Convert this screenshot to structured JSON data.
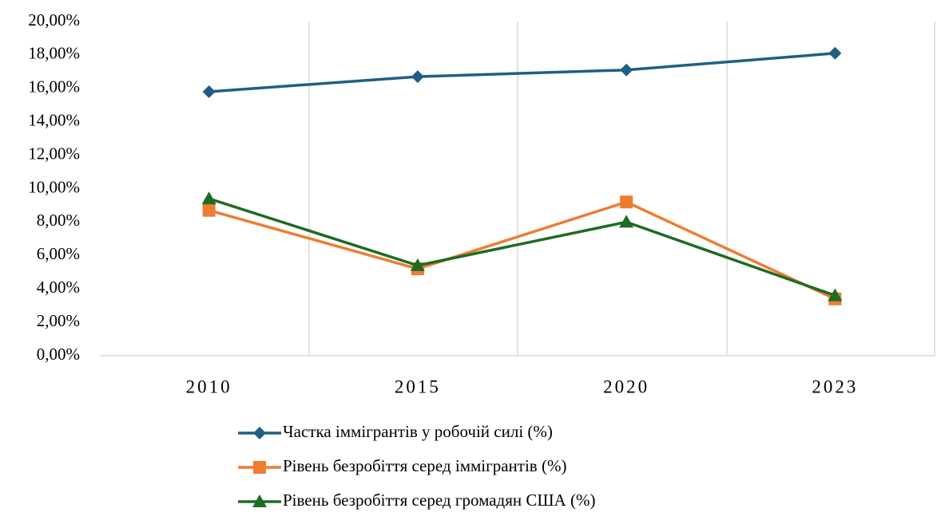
{
  "chart_data": {
    "type": "line",
    "categories": [
      "2010",
      "2015",
      "2020",
      "2023"
    ],
    "series": [
      {
        "name": "Частка іммігрантів у робочій силі (%)",
        "color": "#1f5f82",
        "marker": "diamond",
        "values": [
          15.8,
          16.7,
          17.1,
          18.1
        ]
      },
      {
        "name": "Рівень безробіття серед іммігрантів (%)",
        "color": "#ed7d31",
        "marker": "square",
        "values": [
          8.7,
          5.2,
          9.2,
          3.4
        ]
      },
      {
        "name": "Рівень безробіття серед громадян США (%)",
        "color": "#1e6b23",
        "marker": "triangle",
        "values": [
          9.4,
          5.4,
          8.0,
          3.6
        ]
      }
    ],
    "ylim": [
      0,
      20
    ],
    "yticks": [
      {
        "value": 0,
        "label": "0,00%"
      },
      {
        "value": 2,
        "label": "2,00%"
      },
      {
        "value": 4,
        "label": "4,00%"
      },
      {
        "value": 6,
        "label": "6,00%"
      },
      {
        "value": 8,
        "label": "8,00%"
      },
      {
        "value": 10,
        "label": "10,00%"
      },
      {
        "value": 12,
        "label": "12,00%"
      },
      {
        "value": 14,
        "label": "14,00%"
      },
      {
        "value": 16,
        "label": "16,00%"
      },
      {
        "value": 18,
        "label": "18,00%"
      },
      {
        "value": 20,
        "label": "20,00%"
      }
    ],
    "grid": false,
    "legend": "bottom"
  }
}
